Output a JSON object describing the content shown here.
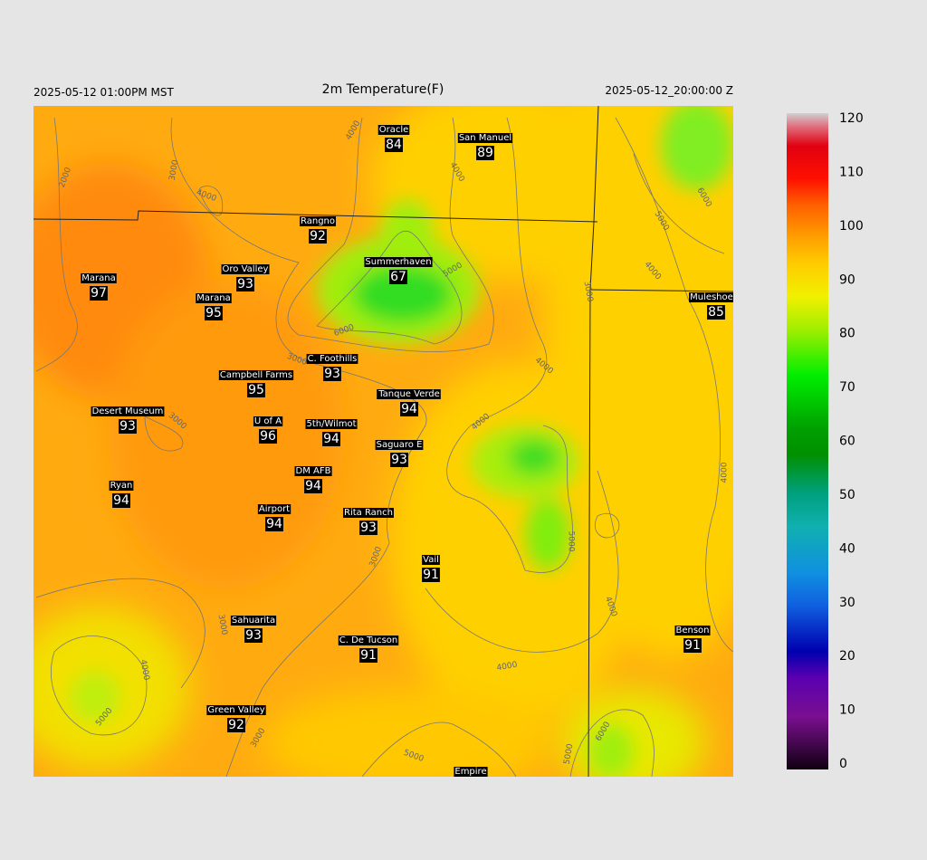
{
  "header": {
    "valid_local": "2025-05-12 01:00PM MST",
    "title": "2m Temperature(F)",
    "valid_utc": "2025-05-12_20:00:00 Z"
  },
  "stations": [
    {
      "name": "Oracle",
      "value": 84
    },
    {
      "name": "San Manuel",
      "value": 89
    },
    {
      "name": "Rangno",
      "value": 92
    },
    {
      "name": "Summerhaven",
      "value": 67
    },
    {
      "name": "Marana",
      "value": 97
    },
    {
      "name": "Oro Valley",
      "value": 93
    },
    {
      "name": "Marana",
      "value": 95
    },
    {
      "name": "Muleshoe R",
      "value": 85
    },
    {
      "name": "C. Foothills",
      "value": 93
    },
    {
      "name": "Campbell Farms",
      "value": 95
    },
    {
      "name": "Tanque Verde",
      "value": 94
    },
    {
      "name": "Desert Museum",
      "value": 93
    },
    {
      "name": "U of A",
      "value": 96
    },
    {
      "name": "5th/Wilmot",
      "value": 94
    },
    {
      "name": "Saguaro E",
      "value": 93
    },
    {
      "name": "DM AFB",
      "value": 94
    },
    {
      "name": "Ryan",
      "value": 94
    },
    {
      "name": "Airport",
      "value": 94
    },
    {
      "name": "Rita Ranch",
      "value": 93
    },
    {
      "name": "Vail",
      "value": 91
    },
    {
      "name": "Sahuarita",
      "value": 93
    },
    {
      "name": "Benson",
      "value": 91
    },
    {
      "name": "C. De Tucson",
      "value": 91
    },
    {
      "name": "Green Valley",
      "value": 92
    },
    {
      "name": "Empire",
      "value": null
    }
  ],
  "contour_labels": [
    2000,
    3000,
    4000,
    4000,
    4000,
    5000,
    6000,
    3000,
    3000,
    4000,
    4000,
    3000,
    4000,
    5000,
    6000,
    4000,
    5000,
    4000,
    3000,
    3000,
    4000,
    5000,
    3000,
    4000,
    5000,
    5000,
    6000
  ],
  "colorbar": {
    "range": [
      0,
      120
    ],
    "ticks": [
      0,
      10,
      20,
      30,
      40,
      50,
      60,
      70,
      80,
      90,
      100,
      110,
      120
    ]
  }
}
